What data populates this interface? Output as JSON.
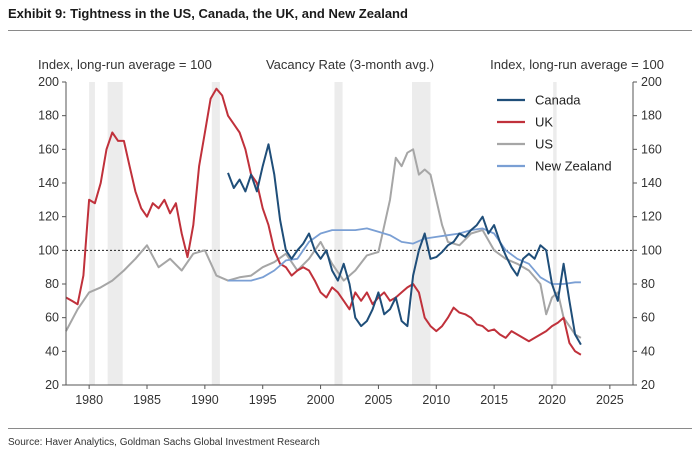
{
  "title": "Exhibit 9: Tightness in the US, Canada, the UK, and New Zealand",
  "source": "Source: Haver Analytics, Goldman Sachs Global Investment Research",
  "chart_data": {
    "type": "line",
    "title": "Exhibit 9: Tightness in the US, Canada, the UK, and New Zealand",
    "left_axis_title": "Index, long-run average = 100",
    "center_title": "Vacancy Rate (3-month avg.)",
    "right_axis_title": "Index, long-run average = 100",
    "xlim": [
      1978,
      2027
    ],
    "ylim": [
      20,
      200
    ],
    "x_ticks": [
      1980,
      1985,
      1990,
      1995,
      2000,
      2005,
      2010,
      2015,
      2020,
      2025
    ],
    "y_ticks": [
      20,
      40,
      60,
      80,
      100,
      120,
      140,
      160,
      180,
      200
    ],
    "reference_line": 100,
    "recession_bands": [
      [
        1980.0,
        1980.5
      ],
      [
        1981.6,
        1982.9
      ],
      [
        1990.6,
        1991.3
      ],
      [
        2001.2,
        2001.9
      ],
      [
        2007.9,
        2009.5
      ],
      [
        2020.1,
        2020.4
      ]
    ],
    "legend": [
      "Canada",
      "UK",
      "US",
      "New Zealand"
    ],
    "series": [
      {
        "name": "Canada",
        "color": "#1f4e79",
        "x": [
          1992.0,
          1992.5,
          1993.0,
          1993.5,
          1994.0,
          1994.5,
          1995.0,
          1995.5,
          1996.0,
          1996.5,
          1997.0,
          1997.5,
          1998.0,
          1998.5,
          1999.0,
          1999.5,
          2000.0,
          2000.5,
          2001.0,
          2001.5,
          2002.0,
          2002.5,
          2003.0,
          2003.5,
          2004.0,
          2004.5,
          2005.0,
          2005.5,
          2006.0,
          2006.5,
          2007.0,
          2007.5,
          2008.0,
          2008.5,
          2009.0,
          2009.5,
          2010.0,
          2010.5,
          2011.0,
          2011.5,
          2012.0,
          2012.5,
          2013.0,
          2013.5,
          2014.0,
          2014.5,
          2015.0,
          2015.5,
          2016.0,
          2016.5,
          2017.0,
          2017.5,
          2018.0,
          2018.5,
          2019.0,
          2019.5,
          2020.0,
          2020.5,
          2021.0,
          2021.5,
          2022.0,
          2022.5
        ],
        "values": [
          146,
          137,
          142,
          135,
          145,
          135,
          150,
          163,
          145,
          118,
          100,
          95,
          100,
          104,
          110,
          100,
          95,
          100,
          88,
          82,
          92,
          80,
          60,
          55,
          58,
          65,
          75,
          62,
          65,
          72,
          58,
          55,
          85,
          100,
          110,
          95,
          96,
          99,
          103,
          105,
          110,
          108,
          112,
          115,
          120,
          110,
          115,
          105,
          97,
          90,
          85,
          95,
          98,
          95,
          103,
          100,
          80,
          70,
          92,
          70,
          50,
          44
        ]
      },
      {
        "name": "UK",
        "color": "#c0313b",
        "x": [
          1978.0,
          1978.5,
          1979.0,
          1979.5,
          1980.0,
          1980.5,
          1981.0,
          1981.5,
          1982.0,
          1982.5,
          1983.0,
          1983.5,
          1984.0,
          1984.5,
          1985.0,
          1985.5,
          1986.0,
          1986.5,
          1987.0,
          1987.5,
          1988.0,
          1988.5,
          1989.0,
          1989.5,
          1990.0,
          1990.5,
          1991.0,
          1991.5,
          1992.0,
          1992.5,
          1993.0,
          1993.5,
          1994.0,
          1994.5,
          1995.0,
          1995.5,
          1996.0,
          1996.5,
          1997.0,
          1997.5,
          1998.0,
          1998.5,
          1999.0,
          1999.5,
          2000.0,
          2000.5,
          2001.0,
          2001.5,
          2002.0,
          2002.5,
          2003.0,
          2003.5,
          2004.0,
          2004.5,
          2005.0,
          2005.5,
          2006.0,
          2006.5,
          2007.0,
          2007.5,
          2008.0,
          2008.5,
          2009.0,
          2009.5,
          2010.0,
          2010.5,
          2011.0,
          2011.5,
          2012.0,
          2012.5,
          2013.0,
          2013.5,
          2014.0,
          2014.5,
          2015.0,
          2015.5,
          2016.0,
          2016.5,
          2017.0,
          2017.5,
          2018.0,
          2018.5,
          2019.0,
          2019.5,
          2020.0,
          2020.5,
          2021.0,
          2021.5,
          2022.0,
          2022.5
        ],
        "values": [
          72,
          70,
          68,
          85,
          130,
          128,
          140,
          160,
          170,
          165,
          165,
          150,
          135,
          125,
          120,
          128,
          125,
          130,
          122,
          128,
          110,
          96,
          115,
          150,
          170,
          190,
          196,
          192,
          180,
          175,
          170,
          160,
          145,
          140,
          125,
          115,
          100,
          92,
          90,
          85,
          88,
          90,
          88,
          82,
          75,
          72,
          78,
          75,
          70,
          65,
          75,
          70,
          75,
          68,
          72,
          75,
          70,
          72,
          75,
          78,
          80,
          75,
          60,
          55,
          52,
          55,
          60,
          66,
          63,
          62,
          60,
          56,
          55,
          52,
          53,
          50,
          48,
          52,
          50,
          48,
          46,
          48,
          50,
          52,
          55,
          57,
          60,
          45,
          40,
          38
        ]
      },
      {
        "name": "US",
        "color": "#a6a6a6",
        "x": [
          1978.0,
          1979.0,
          1980.0,
          1981.0,
          1982.0,
          1983.0,
          1984.0,
          1985.0,
          1986.0,
          1987.0,
          1988.0,
          1989.0,
          1990.0,
          1991.0,
          1992.0,
          1993.0,
          1994.0,
          1995.0,
          1996.0,
          1997.0,
          1998.0,
          1999.0,
          2000.0,
          2001.0,
          2002.0,
          2003.0,
          2004.0,
          2004.5,
          2005.0,
          2006.0,
          2006.5,
          2007.0,
          2007.5,
          2008.0,
          2008.5,
          2009.0,
          2009.5,
          2010.0,
          2010.5,
          2011.0,
          2012.0,
          2013.0,
          2014.0,
          2015.0,
          2016.0,
          2017.0,
          2018.0,
          2019.0,
          2019.5,
          2020.0,
          2020.5,
          2021.0,
          2021.5,
          2022.0,
          2022.5
        ],
        "values": [
          52,
          65,
          75,
          78,
          82,
          88,
          95,
          103,
          90,
          95,
          88,
          98,
          100,
          85,
          82,
          84,
          85,
          90,
          93,
          98,
          88,
          95,
          105,
          92,
          82,
          88,
          97,
          98,
          99,
          130,
          155,
          150,
          158,
          160,
          145,
          148,
          145,
          130,
          115,
          105,
          103,
          110,
          112,
          100,
          95,
          92,
          88,
          80,
          62,
          72,
          75,
          60,
          55,
          50,
          48
        ]
      },
      {
        "name": "New Zealand",
        "color": "#7a9fd4",
        "x": [
          1992.0,
          1993.0,
          1994.0,
          1995.0,
          1996.0,
          1997.0,
          1998.0,
          1999.0,
          2000.0,
          2001.0,
          2002.0,
          2003.0,
          2004.0,
          2005.0,
          2006.0,
          2007.0,
          2008.0,
          2009.0,
          2010.0,
          2011.0,
          2012.0,
          2013.0,
          2014.0,
          2015.0,
          2016.0,
          2017.0,
          2018.0,
          2019.0,
          2020.0,
          2021.0,
          2022.0,
          2022.5
        ],
        "values": [
          82,
          82,
          82,
          84,
          88,
          94,
          95,
          105,
          110,
          112,
          112,
          112,
          113,
          111,
          109,
          105,
          104,
          107,
          108,
          109,
          110,
          112,
          113,
          110,
          100,
          95,
          92,
          84,
          80,
          80,
          81,
          81
        ]
      }
    ]
  }
}
